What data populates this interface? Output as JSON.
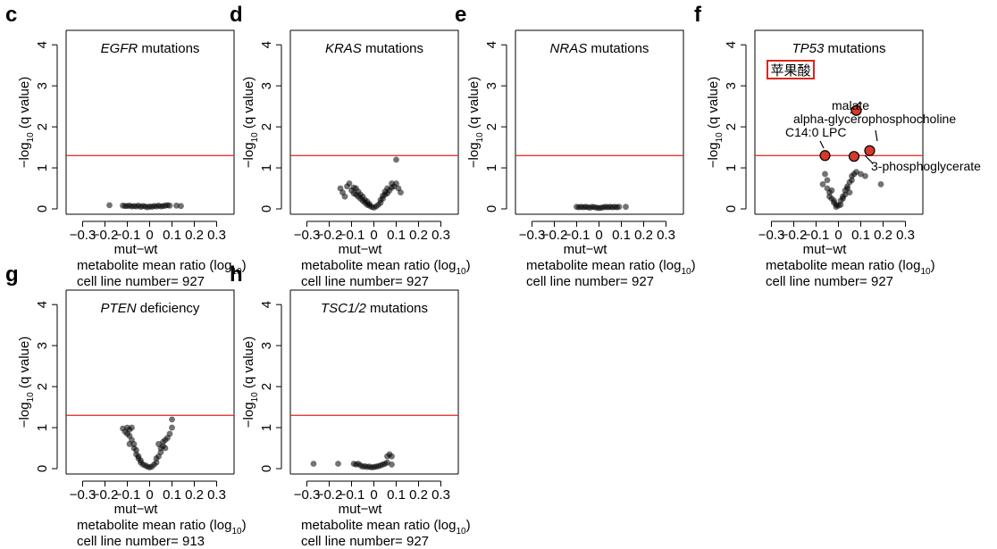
{
  "colors": {
    "threshold": "#e0231d",
    "point": "#555555",
    "highlight": "#d33a2c",
    "callout_box": "#d9271d"
  },
  "chart_data": [
    {
      "panel": "c",
      "type": "scatter",
      "gene": "EGFR",
      "title_suffix": " mutations",
      "xlabel": "mut−wt",
      "ylabel": "−log10 (q value)",
      "caption1": "metabolite mean ratio (log10)",
      "caption2": "cell line number= 927",
      "xlim": [
        -0.33,
        0.33
      ],
      "ylim": [
        0,
        4.2
      ],
      "threshold": 1.3,
      "xticks": [
        "−0.3",
        "−0.2",
        "−0.1",
        "0",
        "0.1",
        "0.2",
        "0.3"
      ],
      "yticks": [
        "0",
        "1",
        "2",
        "3",
        "4"
      ],
      "points": [
        [
          -0.18,
          0.09
        ],
        [
          -0.12,
          0.08
        ],
        [
          -0.11,
          0.07
        ],
        [
          -0.1,
          0.07
        ],
        [
          -0.09,
          0.08
        ],
        [
          -0.08,
          0.06
        ],
        [
          -0.07,
          0.07
        ],
        [
          -0.06,
          0.06
        ],
        [
          -0.05,
          0.08
        ],
        [
          -0.04,
          0.05
        ],
        [
          -0.03,
          0.07
        ],
        [
          -0.02,
          0.06
        ],
        [
          -0.01,
          0.04
        ],
        [
          0.0,
          0.06
        ],
        [
          0.01,
          0.05
        ],
        [
          0.02,
          0.07
        ],
        [
          0.03,
          0.06
        ],
        [
          0.04,
          0.08
        ],
        [
          0.05,
          0.06
        ],
        [
          0.06,
          0.07
        ],
        [
          0.07,
          0.08
        ],
        [
          0.08,
          0.09
        ],
        [
          0.09,
          0.08
        ],
        [
          0.12,
          0.08
        ],
        [
          0.14,
          0.07
        ]
      ],
      "highlights": []
    },
    {
      "panel": "d",
      "type": "scatter",
      "gene": "KRAS",
      "title_suffix": " mutations",
      "xlabel": "mut−wt",
      "ylabel": "−log10 (q value)",
      "caption1": "metabolite mean ratio (log10)",
      "caption2": "cell line number= 927",
      "xlim": [
        -0.33,
        0.33
      ],
      "ylim": [
        0,
        4.2
      ],
      "threshold": 1.3,
      "xticks": [
        "−0.3",
        "−0.2",
        "−0.1",
        "0",
        "0.1",
        "0.2",
        "0.3"
      ],
      "yticks": [
        "0",
        "1",
        "2",
        "3",
        "4"
      ],
      "points": [
        [
          -0.12,
          0.55
        ],
        [
          -0.11,
          0.62
        ],
        [
          -0.1,
          0.45
        ],
        [
          -0.09,
          0.52
        ],
        [
          -0.09,
          0.38
        ],
        [
          -0.08,
          0.35
        ],
        [
          -0.08,
          0.5
        ],
        [
          -0.07,
          0.3
        ],
        [
          -0.07,
          0.42
        ],
        [
          -0.06,
          0.25
        ],
        [
          -0.06,
          0.35
        ],
        [
          -0.05,
          0.2
        ],
        [
          -0.05,
          0.3
        ],
        [
          -0.04,
          0.15
        ],
        [
          -0.04,
          0.22
        ],
        [
          -0.03,
          0.1
        ],
        [
          -0.03,
          0.18
        ],
        [
          -0.02,
          0.08
        ],
        [
          -0.02,
          0.12
        ],
        [
          -0.01,
          0.05
        ],
        [
          0.0,
          0.03
        ],
        [
          0.01,
          0.06
        ],
        [
          0.02,
          0.1
        ],
        [
          0.03,
          0.15
        ],
        [
          0.03,
          0.22
        ],
        [
          0.04,
          0.25
        ],
        [
          0.04,
          0.32
        ],
        [
          0.05,
          0.35
        ],
        [
          0.05,
          0.42
        ],
        [
          0.06,
          0.38
        ],
        [
          0.06,
          0.5
        ],
        [
          0.07,
          0.45
        ],
        [
          0.08,
          0.52
        ],
        [
          0.08,
          0.62
        ],
        [
          0.09,
          0.55
        ],
        [
          0.1,
          0.62
        ],
        [
          0.11,
          0.5
        ],
        [
          0.1,
          1.2
        ],
        [
          -0.14,
          0.4
        ],
        [
          -0.15,
          0.5
        ],
        [
          -0.13,
          0.3
        ],
        [
          0.12,
          0.4
        ]
      ],
      "highlights": []
    },
    {
      "panel": "e",
      "type": "scatter",
      "gene": "NRAS",
      "title_suffix": " mutations",
      "xlabel": "mut−wt",
      "ylabel": "−log10 (q value)",
      "caption1": "metabolite mean ratio (log10)",
      "caption2": "cell line number= 927",
      "xlim": [
        -0.33,
        0.33
      ],
      "ylim": [
        0,
        4.2
      ],
      "threshold": 1.3,
      "xticks": [
        "−0.3",
        "−0.2",
        "−0.1",
        "0",
        "0.1",
        "0.2",
        "0.3"
      ],
      "yticks": [
        "0",
        "1",
        "2",
        "3",
        "4"
      ],
      "points": [
        [
          -0.1,
          0.05
        ],
        [
          -0.09,
          0.04
        ],
        [
          -0.08,
          0.05
        ],
        [
          -0.07,
          0.04
        ],
        [
          -0.06,
          0.05
        ],
        [
          -0.05,
          0.04
        ],
        [
          -0.04,
          0.03
        ],
        [
          -0.03,
          0.05
        ],
        [
          -0.02,
          0.04
        ],
        [
          -0.01,
          0.03
        ],
        [
          0.0,
          0.02
        ],
        [
          0.01,
          0.03
        ],
        [
          0.02,
          0.04
        ],
        [
          0.03,
          0.05
        ],
        [
          0.04,
          0.04
        ],
        [
          0.05,
          0.05
        ],
        [
          0.06,
          0.04
        ],
        [
          0.07,
          0.05
        ],
        [
          0.08,
          0.04
        ],
        [
          0.09,
          0.05
        ],
        [
          0.12,
          0.05
        ]
      ],
      "highlights": []
    },
    {
      "panel": "f",
      "type": "scatter",
      "gene": "TP53",
      "title_suffix": " mutations",
      "xlabel": "mut−wt",
      "ylabel": "−log10 (q value)",
      "caption1": "metabolite mean ratio (log10)",
      "caption2": "cell line number= 927",
      "xlim": [
        -0.33,
        0.33
      ],
      "ylim": [
        0,
        4.2
      ],
      "threshold": 1.3,
      "xticks": [
        "−0.3",
        "−0.2",
        "−0.1",
        "0",
        "0.1",
        "0.2",
        "0.3"
      ],
      "yticks": [
        "0",
        "1",
        "2",
        "3",
        "4"
      ],
      "callout": "苹果酸",
      "points": [
        [
          -0.06,
          0.85
        ],
        [
          -0.05,
          0.7
        ],
        [
          -0.05,
          0.5
        ],
        [
          -0.04,
          0.4
        ],
        [
          -0.04,
          0.3
        ],
        [
          -0.03,
          0.25
        ],
        [
          -0.03,
          0.45
        ],
        [
          -0.02,
          0.2
        ],
        [
          -0.02,
          0.15
        ],
        [
          -0.01,
          0.1
        ],
        [
          -0.01,
          0.05
        ],
        [
          0.0,
          0.08
        ],
        [
          0.01,
          0.1
        ],
        [
          0.01,
          0.2
        ],
        [
          0.02,
          0.3
        ],
        [
          0.02,
          0.25
        ],
        [
          0.03,
          0.35
        ],
        [
          0.03,
          0.45
        ],
        [
          0.04,
          0.5
        ],
        [
          0.04,
          0.55
        ],
        [
          0.05,
          0.65
        ],
        [
          0.06,
          0.7
        ],
        [
          0.06,
          0.8
        ],
        [
          0.07,
          0.85
        ],
        [
          0.08,
          0.9
        ],
        [
          0.1,
          0.85
        ],
        [
          0.12,
          0.8
        ],
        [
          0.19,
          0.6
        ],
        [
          -0.07,
          0.6
        ],
        [
          0.05,
          0.4
        ]
      ],
      "highlights": [
        {
          "label": "malate",
          "x": 0.08,
          "y": 2.4
        },
        {
          "label": "alpha-glycerophosphocholine",
          "x": 0.14,
          "y": 1.42
        },
        {
          "label": "C14:0 LPC",
          "x": -0.06,
          "y": 1.3
        },
        {
          "label": "3-phosphoglycerate",
          "x": 0.07,
          "y": 1.28
        }
      ]
    },
    {
      "panel": "g",
      "type": "scatter",
      "gene": "PTEN",
      "title_suffix": " deficiency",
      "xlabel": "mut−wt",
      "ylabel": "−log10 (q value)",
      "caption1": "metabolite mean ratio (log10)",
      "caption2": "cell line number= 913",
      "xlim": [
        -0.33,
        0.33
      ],
      "ylim": [
        0,
        4.2
      ],
      "threshold": 1.3,
      "xticks": [
        "−0.3",
        "−0.2",
        "−0.1",
        "0",
        "0.1",
        "0.2",
        "0.3"
      ],
      "yticks": [
        "0",
        "1",
        "2",
        "3",
        "4"
      ],
      "points": [
        [
          -0.12,
          0.98
        ],
        [
          -0.11,
          0.9
        ],
        [
          -0.1,
          1.0
        ],
        [
          -0.09,
          0.95
        ],
        [
          -0.09,
          0.8
        ],
        [
          -0.08,
          0.7
        ],
        [
          -0.08,
          1.0
        ],
        [
          -0.07,
          0.6
        ],
        [
          -0.07,
          0.5
        ],
        [
          -0.06,
          0.45
        ],
        [
          -0.06,
          0.35
        ],
        [
          -0.05,
          0.3
        ],
        [
          -0.05,
          0.25
        ],
        [
          -0.04,
          0.2
        ],
        [
          -0.04,
          0.15
        ],
        [
          -0.03,
          0.1
        ],
        [
          -0.02,
          0.08
        ],
        [
          -0.01,
          0.05
        ],
        [
          0.0,
          0.03
        ],
        [
          0.01,
          0.05
        ],
        [
          0.02,
          0.1
        ],
        [
          0.03,
          0.15
        ],
        [
          0.03,
          0.25
        ],
        [
          0.04,
          0.3
        ],
        [
          0.05,
          0.4
        ],
        [
          0.05,
          0.5
        ],
        [
          0.06,
          0.55
        ],
        [
          0.06,
          0.65
        ],
        [
          0.07,
          0.7
        ],
        [
          0.08,
          0.75
        ],
        [
          0.09,
          0.85
        ],
        [
          0.1,
          1.2
        ],
        [
          0.1,
          1.0
        ],
        [
          -0.1,
          0.85
        ],
        [
          -0.09,
          0.6
        ],
        [
          0.07,
          0.5
        ],
        [
          0.04,
          0.6
        ]
      ],
      "highlights": []
    },
    {
      "panel": "h",
      "type": "scatter",
      "gene": "TSC1/2",
      "title_suffix": " mutations",
      "xlabel": "mut−wt",
      "ylabel": "−log10 (q value)",
      "caption1": "metabolite mean ratio (log10)",
      "caption2": "cell line number= 927",
      "xlim": [
        -0.33,
        0.33
      ],
      "ylim": [
        0,
        4.2
      ],
      "threshold": 1.3,
      "xticks": [
        "−0.3",
        "−0.2",
        "−0.1",
        "0",
        "0.1",
        "0.2",
        "0.3"
      ],
      "yticks": [
        "0",
        "1",
        "2",
        "3",
        "4"
      ],
      "points": [
        [
          -0.27,
          0.12
        ],
        [
          -0.16,
          0.12
        ],
        [
          -0.09,
          0.12
        ],
        [
          -0.08,
          0.1
        ],
        [
          -0.07,
          0.12
        ],
        [
          -0.06,
          0.08
        ],
        [
          -0.05,
          0.05
        ],
        [
          -0.04,
          0.06
        ],
        [
          -0.03,
          0.04
        ],
        [
          -0.02,
          0.05
        ],
        [
          -0.01,
          0.03
        ],
        [
          0.0,
          0.04
        ],
        [
          0.01,
          0.05
        ],
        [
          0.02,
          0.06
        ],
        [
          0.03,
          0.08
        ],
        [
          0.04,
          0.1
        ],
        [
          0.05,
          0.12
        ],
        [
          0.06,
          0.15
        ],
        [
          0.06,
          0.3
        ],
        [
          0.07,
          0.35
        ],
        [
          0.08,
          0.3
        ],
        [
          0.08,
          0.1
        ]
      ],
      "highlights": []
    }
  ]
}
